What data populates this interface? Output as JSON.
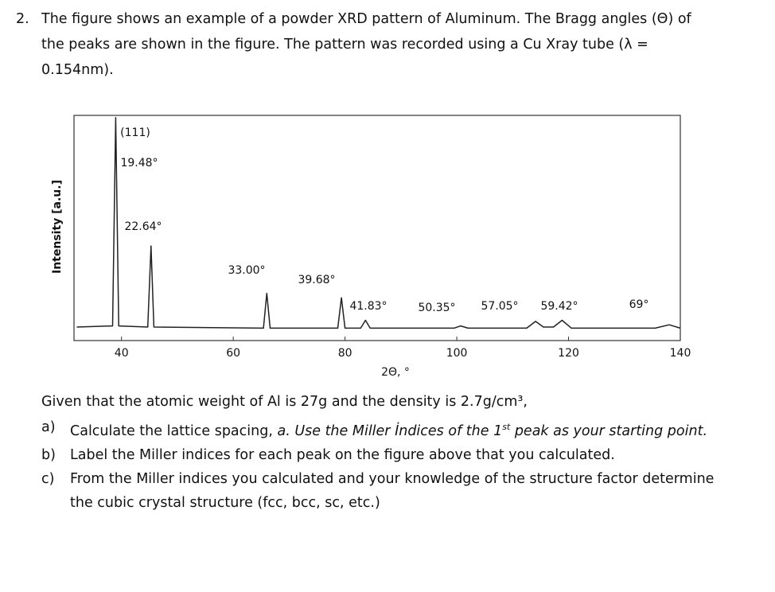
{
  "question": {
    "number": "2.",
    "text": "The figure shows an example of a powder XRD pattern of Aluminum. The Bragg angles (Θ) of the peaks are shown in the figure. The pattern was recorded using a Cu Xray tube (λ = 0.154nm)."
  },
  "chart_data": {
    "type": "line",
    "x_label": "2Θ, °",
    "y_label": "Intensity [a.u.]",
    "xlim": [
      31.5,
      140
    ],
    "xticks": [
      40,
      60,
      80,
      100,
      120,
      140
    ],
    "ylim": [
      0,
      100
    ],
    "annotations": [
      "(111)",
      "19.48°",
      "22.64°",
      "33.00°",
      "39.68°",
      "41.83°",
      "50.35°",
      "57.05°",
      "59.42°",
      "69°"
    ],
    "series": [
      {
        "color": "#222222",
        "x": [
          32,
          38.4,
          38.96,
          39.5,
          44.7,
          45.28,
          45.8,
          65.4,
          66,
          66.6,
          78.7,
          79.36,
          80,
          82.8,
          83.66,
          84.5,
          99.5,
          100.7,
          102,
          112.5,
          114.1,
          115.5,
          117.3,
          118.84,
          120.5,
          135.5,
          138,
          140
        ],
        "values": [
          6,
          6.5,
          99,
          6.5,
          6,
          42,
          6,
          5.5,
          21,
          5.5,
          5.5,
          19,
          5.5,
          5.5,
          9,
          5.5,
          5.5,
          6.5,
          5.5,
          5.5,
          8.5,
          6,
          6,
          9,
          5.5,
          5.5,
          7,
          5.5
        ]
      }
    ]
  },
  "given": {
    "text": "Given that the atomic weight of Al is 27g and the density is 2.7g/cm³,"
  },
  "items": [
    {
      "label": "a)",
      "parts": [
        "Calculate the lattice spacing, ",
        "a. Use the Miller İndices of the 1",
        "st",
        " peak as your starting point."
      ]
    },
    {
      "label": "b)",
      "parts": [
        "Label the Miller indices for each peak on the figure above that you calculated."
      ]
    },
    {
      "label": "c)",
      "parts": [
        "From the Miller indices you calculated and your knowledge of the structure factor determine the cubic crystal structure (fcc, bcc, sc, etc.)"
      ]
    }
  ]
}
